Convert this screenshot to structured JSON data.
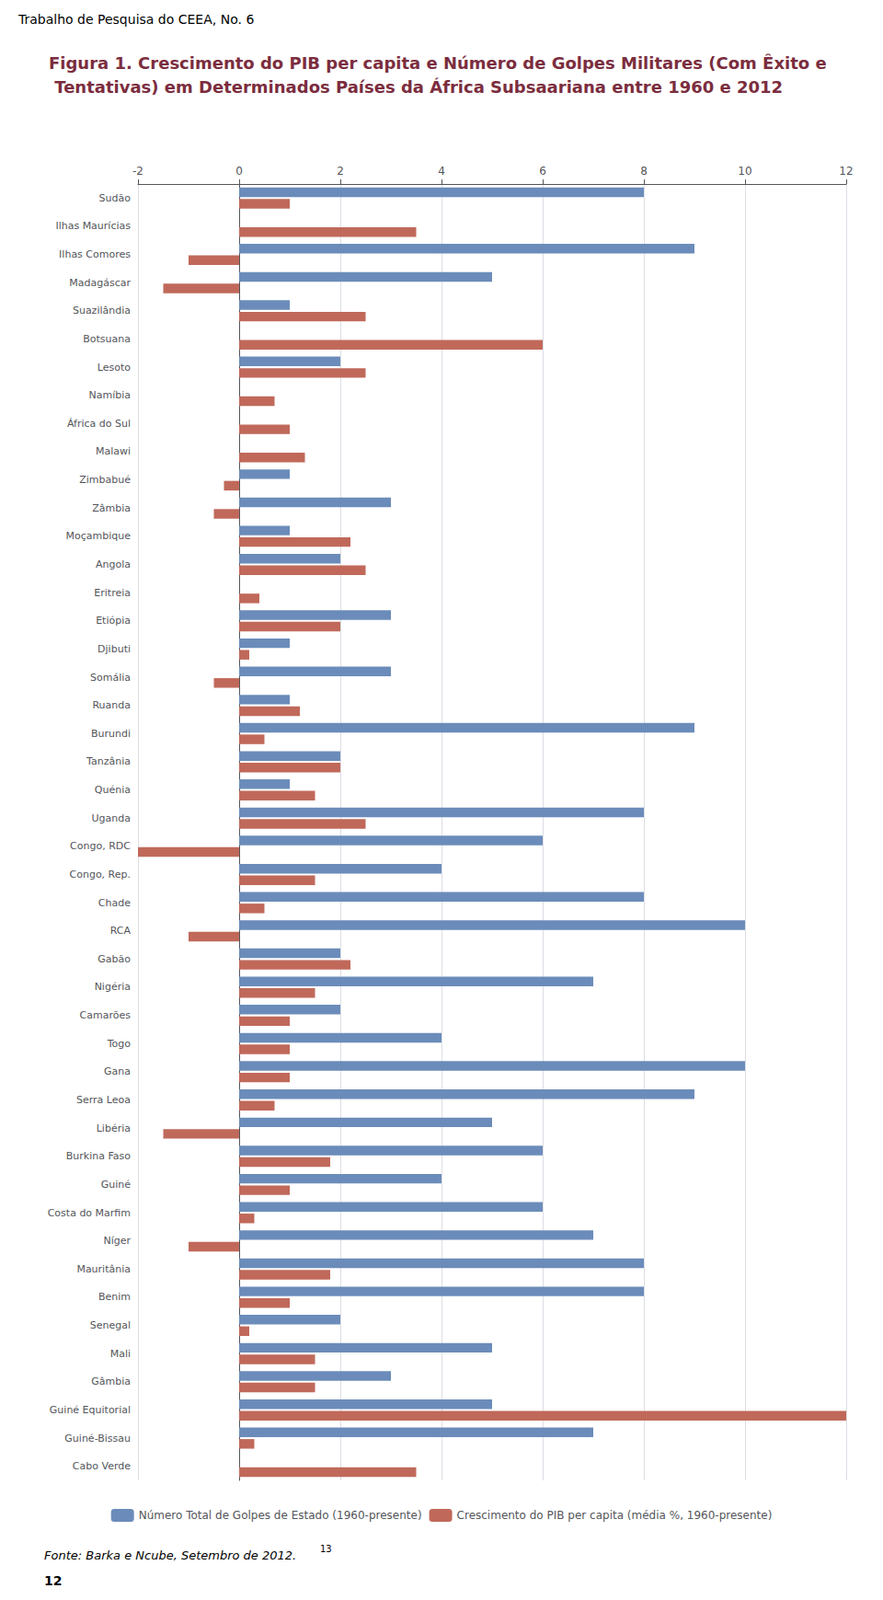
{
  "chart_data": {
    "type": "bar",
    "orientation": "horizontal",
    "title": "Figura 1. Crescimento do PIB per capita e Número de Golpes Militares (Com Êxito e Tentativas) em Determinados Países da África Subsaariana entre 1960 e 2012",
    "annotations": [
      "Trabalho de Pesquisa do CEEA, No. 6",
      "Fonte: Barka e Ncube, Setembro de 2012.",
      "13",
      "12"
    ],
    "categories": [
      "Sudão",
      "Ilhas Maurícias",
      "Ilhas Comores",
      "Madagáscar",
      "Suazilândia",
      "Botsuana",
      "Lesoto",
      "Namíbia",
      "África do Sul",
      "Malawi",
      "Zimbabué",
      "Zâmbia",
      "Moçambique",
      "Angola",
      "Eritreia",
      "Etiópia",
      "Djibuti",
      "Somália",
      "Ruanda",
      "Burundi",
      "Tanzânia",
      "Quénia",
      "Uganda",
      "Congo, RDC",
      "Congo, Rep.",
      "Chade",
      "RCA",
      "Gabão",
      "Nigéria",
      "Camarões",
      "Togo",
      "Gana",
      "Serra Leoa",
      "Libéria",
      "Burkina Faso",
      "Guiné",
      "Costa do Marfim",
      "Níger",
      "Mauritânia",
      "Benim",
      "Senegal",
      "Mali",
      "Gâmbia",
      "Guiné Equitorial",
      "Guiné-Bissau",
      "Cabo Verde"
    ],
    "series": [
      {
        "name": "Número Total de Golpes de Estado (1960-presente)",
        "color": "#6b8cba",
        "values": [
          8,
          0,
          9,
          5,
          1,
          0,
          2,
          0,
          0,
          0,
          1,
          3,
          1,
          2,
          0,
          3,
          1,
          3,
          1,
          9,
          2,
          1,
          8,
          6,
          4,
          8,
          10,
          2,
          7,
          2,
          4,
          10,
          9,
          5,
          6,
          4,
          6,
          7,
          8,
          8,
          2,
          5,
          3,
          5,
          7,
          0
        ]
      },
      {
        "name": "Crescimento do PIB per capita (média %, 1960-presente)",
        "color": "#c0695a",
        "values": [
          1.0,
          3.5,
          -1.0,
          -1.5,
          2.5,
          6.0,
          2.5,
          0.7,
          1.0,
          1.3,
          -0.3,
          -0.5,
          2.2,
          2.5,
          0.4,
          2.0,
          0.2,
          -0.5,
          1.2,
          0.5,
          2.0,
          1.5,
          2.5,
          -2.0,
          1.5,
          0.5,
          -1.0,
          2.2,
          1.5,
          1.0,
          1.0,
          1.0,
          0.7,
          -1.5,
          1.8,
          1.0,
          0.3,
          -1.0,
          1.8,
          1.0,
          0.2,
          1.5,
          1.5,
          12.0,
          0.3,
          3.5
        ]
      }
    ],
    "xlim": [
      -2,
      12
    ],
    "xticks": [
      -2,
      0,
      2,
      4,
      6,
      8,
      10,
      12
    ],
    "grid": true,
    "legend": "bottom"
  }
}
